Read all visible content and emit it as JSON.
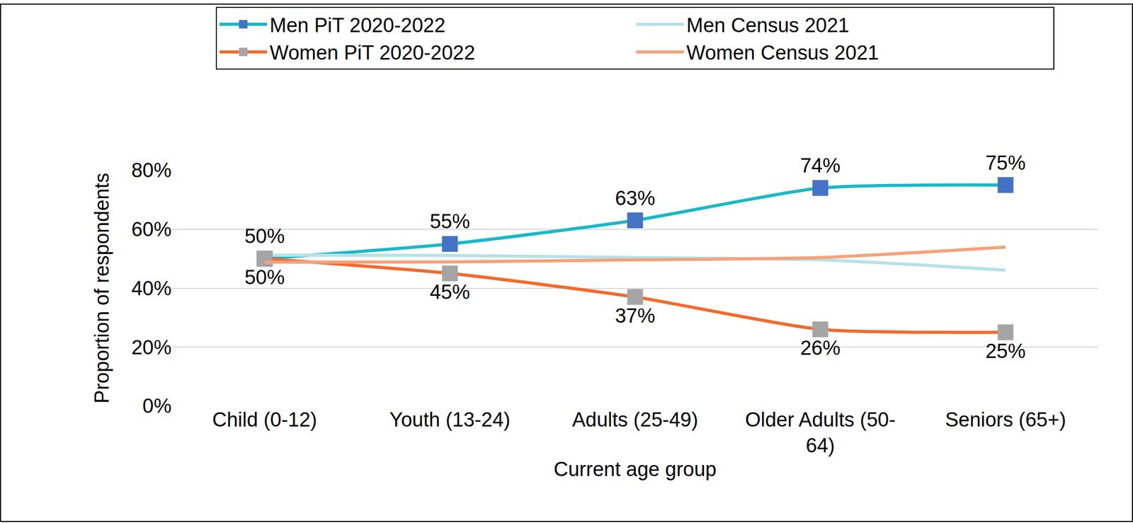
{
  "chart_data": {
    "type": "line",
    "x_label": "Current age group",
    "y_label": "Proportion of respondents",
    "categories": [
      "Child (0-12)",
      "Youth (13-24)",
      "Adults (25-49)",
      "Older Adults (50-64)",
      "Seniors (65+)"
    ],
    "series": [
      {
        "name": "Men PiT 2020-2022",
        "color": "#1AB8C6",
        "marker": "square",
        "data_labels": true,
        "values": [
          50,
          55,
          63,
          74,
          75
        ],
        "value_labels": [
          "50%",
          "55%",
          "63%",
          "74%",
          "75%"
        ]
      },
      {
        "name": "Men Census 2021",
        "color": "#B6E2E6",
        "marker": "none",
        "values": [
          51.2,
          51.1,
          50.4,
          49.6,
          46.1
        ]
      },
      {
        "name": "Women PiT 2020-2022",
        "color": "#F26A2C",
        "marker": "square",
        "data_labels": true,
        "values": [
          50,
          45,
          37,
          26,
          25
        ],
        "value_labels": [
          "50%",
          "45%",
          "37%",
          "26%",
          "25%"
        ]
      },
      {
        "name": "Women Census 2021",
        "color": "#F4A27A",
        "marker": "none",
        "values": [
          48.8,
          48.9,
          49.6,
          50.4,
          53.9
        ]
      }
    ],
    "ylim": [
      0,
      80
    ],
    "yticks": [
      {
        "value": 0,
        "label": "0%"
      },
      {
        "value": 20,
        "label": "20%"
      },
      {
        "value": 40,
        "label": "40%"
      },
      {
        "value": 60,
        "label": "60%"
      },
      {
        "value": 80,
        "label": "80%"
      }
    ],
    "grid": true,
    "legend": "top"
  }
}
